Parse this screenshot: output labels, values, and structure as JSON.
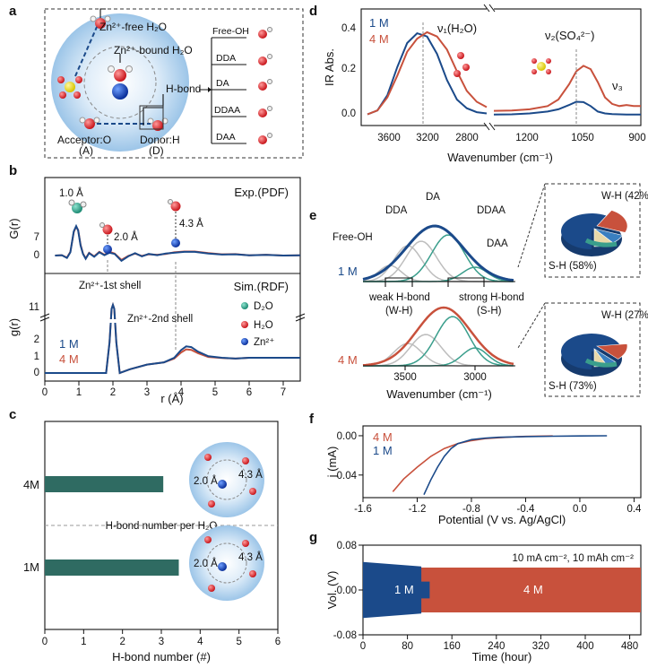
{
  "colors": {
    "m1": "#1b4a8a",
    "m4": "#c8513c",
    "teal": "#2f6b62",
    "mid": "#3a9e8c",
    "grey": "#bdbdbd",
    "sphere": "#b9d6ef"
  },
  "panel_labels": [
    "a",
    "b",
    "c",
    "d",
    "e",
    "f",
    "g"
  ],
  "panel_a": {
    "free_h2o": "Zn²⁺-free H₂O",
    "bound_h2o": "Zn²⁺-bound H₂O",
    "hbond": "H-bond",
    "acceptor": "Acceptor:O",
    "acceptor_sub": "(A)",
    "donor": "Donor:H",
    "donor_sub": "(D)",
    "types": [
      "Free-OH",
      "DDA",
      "DA",
      "DDAA",
      "DAA"
    ]
  },
  "chart_data": [
    {
      "id": "b-top",
      "type": "line",
      "label": "Exp.(PDF)",
      "ylabel": "G(r)",
      "yticks": [
        "7",
        "0"
      ],
      "ylim": [
        -2,
        9.5
      ],
      "xlim": [
        0,
        7.5
      ],
      "annotations": [
        "1.0 Å",
        "2.0 Å",
        "4.3 Å"
      ],
      "series": [
        {
          "name": "1 M",
          "x": [
            0.3,
            0.5,
            0.65,
            0.75,
            0.85,
            0.92,
            0.98,
            1.05,
            1.12,
            1.2,
            1.3,
            1.45,
            1.6,
            1.75,
            1.9,
            2.05,
            2.25,
            2.45,
            2.65,
            2.85,
            3.05,
            3.3,
            3.55,
            3.8,
            4.1,
            4.4,
            4.8,
            5.2,
            5.6,
            6.0,
            6.5,
            7.0,
            7.5
          ],
          "y": [
            0,
            0.1,
            -0.6,
            0.8,
            6.0,
            7.3,
            6.2,
            2.5,
            0.4,
            -0.8,
            0.6,
            -0.3,
            0.8,
            0.1,
            0.7,
            0.4,
            -1.3,
            -0.2,
            0.6,
            -0.2,
            0.4,
            0.1,
            0.5,
            0.7,
            0.9,
            0.9,
            0.5,
            0.25,
            0.3,
            0.05,
            0.15,
            0.0,
            0.05
          ]
        },
        {
          "name": "4 M",
          "x": [
            0.3,
            0.5,
            0.65,
            0.75,
            0.85,
            0.92,
            0.98,
            1.05,
            1.12,
            1.2,
            1.3,
            1.45,
            1.6,
            1.75,
            1.9,
            2.05,
            2.25,
            2.45,
            2.65,
            2.85,
            3.05,
            3.3,
            3.55,
            3.8,
            4.1,
            4.4,
            4.8,
            5.2,
            5.6,
            6.0,
            6.5,
            7.0,
            7.5
          ],
          "y": [
            0,
            0.1,
            -0.5,
            0.9,
            5.8,
            7.2,
            6.3,
            2.7,
            0.5,
            -0.7,
            0.7,
            -0.2,
            0.9,
            0.2,
            0.9,
            0.5,
            -1.1,
            -0.1,
            0.5,
            -0.1,
            0.3,
            0.2,
            0.4,
            0.8,
            1.0,
            1.0,
            0.6,
            0.3,
            0.35,
            0.05,
            0.2,
            0.0,
            0.05
          ]
        }
      ]
    },
    {
      "id": "b-bottom",
      "type": "line",
      "label": "Sim.(RDF)",
      "ylabel": "g(r)",
      "yticks": [
        "11",
        "2",
        "1",
        "0"
      ],
      "xlim": [
        0,
        7.5
      ],
      "xticks": [
        "0",
        "1",
        "2",
        "3",
        "4",
        "5",
        "6",
        "7"
      ],
      "xlabel": "r (Å)",
      "shell1": "Zn²⁺-1st shell",
      "shell2": "Zn²⁺-2nd shell",
      "legend_atoms": [
        "D₂O",
        "H₂O",
        "Zn²⁺"
      ],
      "series": [
        {
          "name": "1 M",
          "x": [
            0,
            1.8,
            1.9,
            1.96,
            2.0,
            2.04,
            2.1,
            2.2,
            2.5,
            3.0,
            3.5,
            3.8,
            4.0,
            4.15,
            4.3,
            4.5,
            4.8,
            5.2,
            5.6,
            6.0,
            7.5
          ],
          "y": [
            0,
            0,
            2.0,
            11.0,
            12.0,
            11.0,
            2.0,
            0,
            0.25,
            0.55,
            0.7,
            1.0,
            1.5,
            1.75,
            1.7,
            1.4,
            1.1,
            1.0,
            0.95,
            1.0,
            1.0
          ]
        },
        {
          "name": "4 M",
          "x": [
            0,
            1.8,
            1.9,
            1.96,
            2.0,
            2.04,
            2.1,
            2.2,
            2.5,
            3.0,
            3.5,
            3.8,
            4.0,
            4.15,
            4.3,
            4.5,
            4.8,
            5.2,
            5.6,
            6.0,
            7.5
          ],
          "y": [
            0,
            0,
            2.0,
            11.0,
            12.0,
            11.0,
            2.0,
            0,
            0.25,
            0.55,
            0.7,
            0.95,
            1.35,
            1.55,
            1.52,
            1.3,
            1.05,
            0.98,
            0.95,
            1.0,
            1.0
          ]
        }
      ]
    },
    {
      "id": "c",
      "type": "bar",
      "orientation": "horizontal",
      "categories": [
        "4M",
        "1M"
      ],
      "values": [
        3.05,
        3.45
      ],
      "xlim": [
        0,
        6
      ],
      "xticks": [
        "0",
        "1",
        "2",
        "3",
        "4",
        "5",
        "6"
      ],
      "xlabel": "H-bond number (#)",
      "divider": "H-bond number per H₂O",
      "insets": [
        {
          "a": "2.0 Å",
          "b": "4.3 Å"
        },
        {
          "a": "2.0 Å",
          "b": "4.3 Å"
        }
      ]
    },
    {
      "id": "d",
      "type": "line",
      "ylabel": "IR Abs.",
      "xlabel": "Wavenumber (cm⁻¹)",
      "ylim": [
        -0.05,
        0.42
      ],
      "yticks": [
        "0.4",
        "0.2",
        "0.0"
      ],
      "xticks_left": [
        "3600",
        "3200",
        "2800"
      ],
      "xticks_right": [
        "1200",
        "1050",
        "900"
      ],
      "peaks": [
        "ν₁(H₂O)",
        "ν₂(SO₄²⁻)",
        "ν₃"
      ],
      "series": [
        {
          "name": "1 M",
          "left": {
            "x": [
              3850,
              3750,
              3650,
              3550,
              3450,
              3350,
              3250,
              3150,
              3050,
              2950,
              2850,
              2750,
              2650
            ],
            "y": [
              0.002,
              0.02,
              0.09,
              0.22,
              0.33,
              0.375,
              0.36,
              0.28,
              0.16,
              0.07,
              0.03,
              0.012,
              0.006
            ]
          },
          "right": {
            "x": [
              1300,
              1250,
              1200,
              1150,
              1120,
              1090,
              1070,
              1050,
              1030,
              1010,
              990,
              970,
              950,
              930,
              910,
              890
            ],
            "y": [
              0.001,
              0.002,
              0.006,
              0.015,
              0.025,
              0.045,
              0.06,
              0.058,
              0.04,
              0.015,
              0.006,
              0.003,
              0.002,
              0.001,
              0.001,
              0.001
            ]
          }
        },
        {
          "name": "4 M",
          "left": {
            "x": [
              3850,
              3750,
              3650,
              3550,
              3450,
              3350,
              3250,
              3150,
              3050,
              2950,
              2850,
              2750,
              2650
            ],
            "y": [
              0.002,
              0.02,
              0.08,
              0.18,
              0.29,
              0.35,
              0.38,
              0.36,
              0.3,
              0.2,
              0.11,
              0.06,
              0.035
            ]
          },
          "right": {
            "x": [
              1300,
              1250,
              1200,
              1150,
              1120,
              1090,
              1070,
              1050,
              1030,
              1010,
              990,
              970,
              950,
              930,
              910,
              890
            ],
            "y": [
              0.018,
              0.02,
              0.025,
              0.04,
              0.07,
              0.14,
              0.2,
              0.225,
              0.21,
              0.15,
              0.08,
              0.05,
              0.04,
              0.045,
              0.04,
              0.04
            ]
          }
        }
      ],
      "legend": [
        "1 M",
        "4 M"
      ]
    },
    {
      "id": "e",
      "type": "area",
      "xlabel": "Wavenumber (cm⁻¹)",
      "xticks": [
        "3500",
        "3000"
      ],
      "legend": [
        "1 M",
        "4 M"
      ],
      "labels": [
        "Free-OH",
        "DDA",
        "DA",
        "DDAA",
        "DAA",
        "weak H-bond",
        "(W-H)",
        "strong H-bond",
        "(S-H)"
      ],
      "pies": [
        {
          "name": "1 M",
          "weak_label": "W-H (42%)",
          "strong_label": "S-H (58%)",
          "weak": 42,
          "strong": 58
        },
        {
          "name": "4 M",
          "weak_label": "W-H (27%)",
          "strong_label": "S-H (73%)",
          "weak": 27,
          "strong": 73
        }
      ]
    },
    {
      "id": "f",
      "type": "line",
      "ylabel": "j (mA)",
      "xlabel": "Potential (V vs. Ag/AgCl)",
      "xlim": [
        -1.6,
        0.45
      ],
      "ylim": [
        -0.063,
        0.01
      ],
      "xticks": [
        "-1.6",
        "-1.2",
        "-0.8",
        "-0.4",
        "0.0",
        "0.4"
      ],
      "yticks": [
        "0.00",
        "-0.04"
      ],
      "series": [
        {
          "name": "4 M",
          "x": [
            -1.38,
            -1.3,
            -1.2,
            -1.1,
            -1.0,
            -0.9,
            -0.8,
            -0.7,
            -0.6,
            -0.5,
            -0.4,
            -0.3,
            -0.2
          ],
          "y": [
            -0.057,
            -0.044,
            -0.032,
            -0.021,
            -0.013,
            -0.008,
            -0.005,
            -0.003,
            -0.002,
            -0.0012,
            -0.0007,
            -0.0004,
            -0.0002
          ]
        },
        {
          "name": "1 M",
          "x": [
            -1.15,
            -1.1,
            -1.05,
            -1.0,
            -0.95,
            -0.9,
            -0.8,
            -0.7,
            -0.6,
            -0.4,
            -0.2,
            0.0,
            0.2
          ],
          "y": [
            -0.06,
            -0.045,
            -0.032,
            -0.021,
            -0.013,
            -0.008,
            -0.004,
            -0.0025,
            -0.0016,
            -0.0009,
            -0.0005,
            -0.0002,
            0.0
          ]
        }
      ]
    },
    {
      "id": "g",
      "type": "area",
      "ylabel": "Vol. (V)",
      "xlabel": "Time (hour)",
      "xlim": [
        0,
        500
      ],
      "ylim": [
        -0.08,
        0.08
      ],
      "xticks": [
        "0",
        "80",
        "160",
        "240",
        "320",
        "400",
        "480"
      ],
      "yticks": [
        "0.08",
        "0.00",
        "-0.08"
      ],
      "condition": "10 mA cm⁻², 10 mAh cm⁻²",
      "series": [
        {
          "name": "1 M",
          "x_end": 120,
          "amplitude": 0.05
        },
        {
          "name": "4 M",
          "x_end": 500,
          "amplitude": 0.04
        }
      ]
    }
  ]
}
